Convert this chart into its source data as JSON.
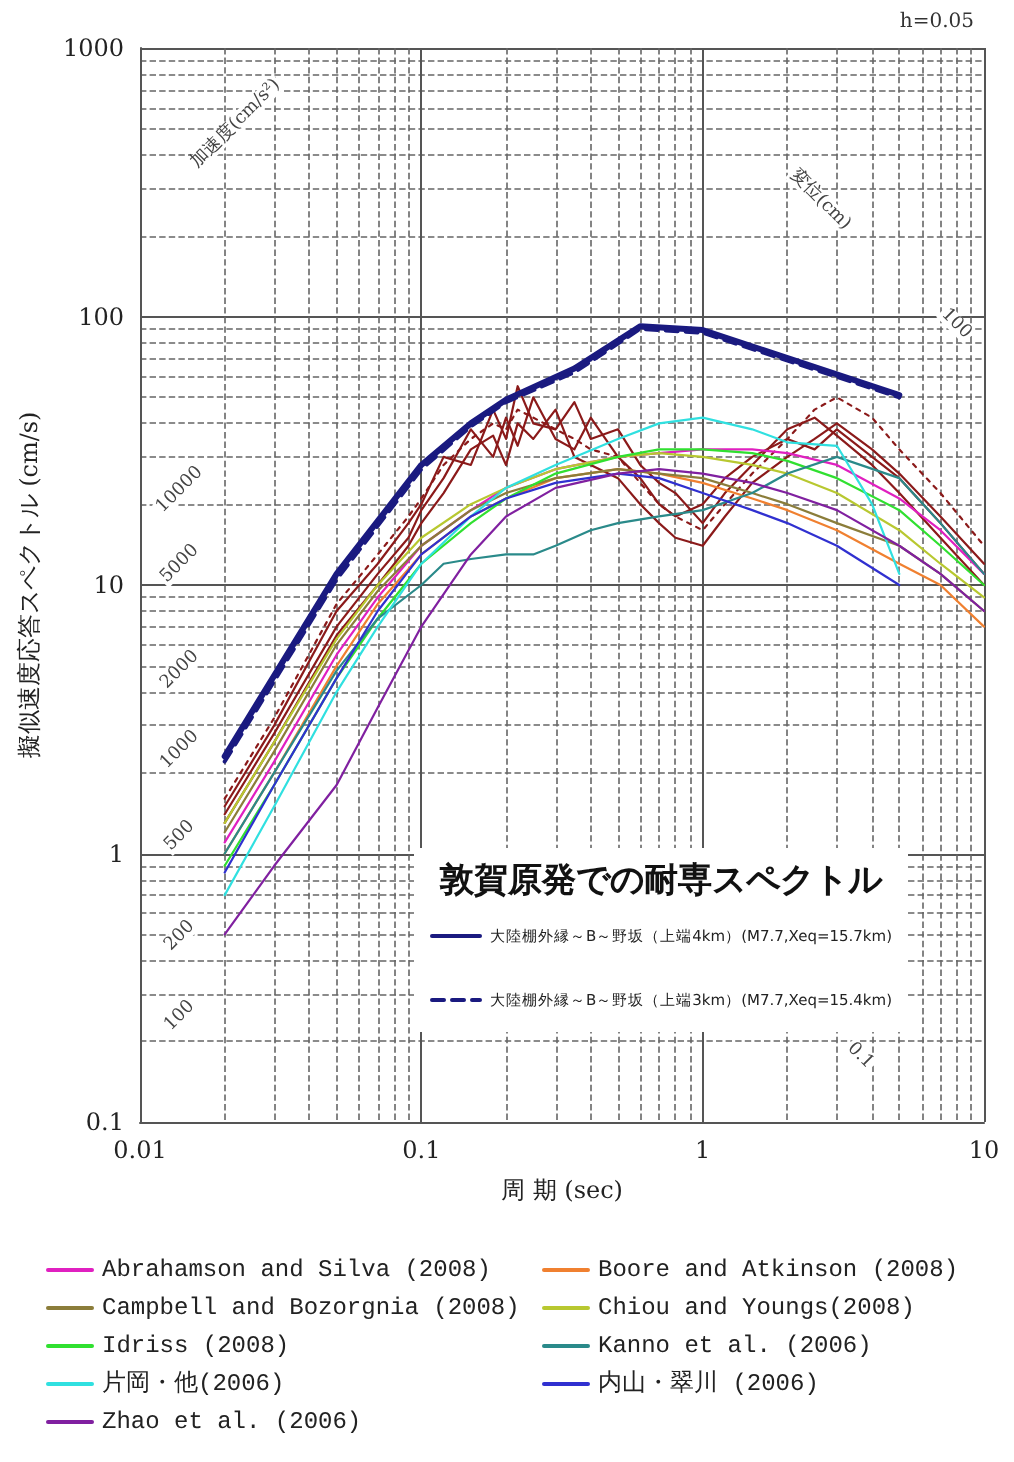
{
  "chart_data": {
    "type": "line",
    "xlabel": "周 期 (sec)",
    "ylabel": "擬似速度応答スペクトル (cm/s)",
    "legend_title": "敦賀原発での耐専スペクトル",
    "log": "xy",
    "grid": true,
    "legend": "bottom",
    "marker": "none",
    "xlim": [
      0.01,
      10
    ],
    "xticks": [
      0.01,
      0.1,
      1,
      10
    ],
    "ylim": [
      0.1,
      1000
    ],
    "yticks": [
      0.1,
      1,
      10,
      100,
      1000
    ],
    "annotations": [
      "h=0.05",
      "加速度(cm/s²)",
      "変位(cm)",
      "10000",
      "5000",
      "2000",
      "1000",
      "500",
      "200",
      "100",
      "100",
      "0.1"
    ],
    "series": [
      {
        "name": "大陸棚外縁～B～野坂（上端4km）(M7.7,Xeq=15.7km)",
        "color": "#1a1a80",
        "x": [
          0.02,
          0.05,
          0.1,
          0.15,
          0.2,
          0.35,
          0.6,
          1,
          5
        ],
        "values": [
          2.3,
          11,
          28,
          40,
          49,
          64,
          92,
          89,
          51
        ]
      },
      {
        "name": "大陸棚外縁～B～野坂（上端3km）(M7.7,Xeq=15.4km)",
        "color": "#1a1a80",
        "line_style": "dashed",
        "x": [
          0.02,
          0.05,
          0.1,
          0.15,
          0.2,
          0.35,
          0.6,
          1,
          5
        ],
        "values": [
          2.2,
          10.5,
          27,
          39,
          48,
          62,
          90,
          87,
          50
        ]
      },
      {
        "color": "#8b1a1a",
        "x": [
          0.02,
          0.03,
          0.05,
          0.07,
          0.09,
          0.1,
          0.12,
          0.15,
          0.18,
          0.2,
          0.22,
          0.25,
          0.3,
          0.35,
          0.4,
          0.5,
          0.6,
          0.7,
          0.8,
          1,
          1.2,
          1.5,
          2,
          2.5,
          3,
          4,
          5,
          7,
          10
        ],
        "values": [
          1.5,
          3,
          8,
          12,
          17,
          20,
          30,
          28,
          45,
          35,
          55,
          40,
          38,
          48,
          35,
          38,
          28,
          24,
          22,
          17,
          22,
          28,
          38,
          42,
          36,
          28,
          22,
          15,
          10
        ]
      },
      {
        "color": "#8b1a1a",
        "x": [
          0.02,
          0.03,
          0.05,
          0.07,
          0.09,
          0.1,
          0.12,
          0.15,
          0.18,
          0.2,
          0.22,
          0.25,
          0.3,
          0.35,
          0.4,
          0.5,
          0.6,
          0.7,
          0.8,
          1,
          1.2,
          1.5,
          2,
          2.5,
          3,
          4,
          5,
          7,
          10
        ],
        "values": [
          1.4,
          2.8,
          7,
          11,
          15,
          19,
          25,
          38,
          30,
          42,
          33,
          50,
          35,
          32,
          42,
          30,
          25,
          20,
          18,
          20,
          25,
          30,
          35,
          32,
          38,
          30,
          25,
          17,
          11
        ]
      },
      {
        "color": "#8b1a1a",
        "x": [
          0.02,
          0.03,
          0.05,
          0.07,
          0.09,
          0.1,
          0.12,
          0.15,
          0.18,
          0.2,
          0.22,
          0.25,
          0.3,
          0.35,
          0.4,
          0.5,
          0.6,
          0.7,
          0.8,
          1,
          1.2,
          1.5,
          2,
          2.5,
          3,
          4,
          5,
          7,
          10
        ],
        "values": [
          1.3,
          2.6,
          6.5,
          10,
          14,
          17,
          22,
          32,
          36,
          28,
          40,
          35,
          45,
          30,
          28,
          25,
          20,
          17,
          15,
          14,
          18,
          24,
          30,
          35,
          40,
          32,
          26,
          18,
          12
        ]
      },
      {
        "color": "#8b1a1a",
        "line_style": "dotted",
        "x": [
          0.02,
          0.03,
          0.05,
          0.07,
          0.09,
          0.1,
          0.12,
          0.15,
          0.18,
          0.2,
          0.22,
          0.25,
          0.3,
          0.35,
          0.4,
          0.5,
          0.6,
          0.7,
          0.8,
          1,
          1.2,
          1.5,
          2,
          2.5,
          3,
          4,
          5,
          7,
          10
        ],
        "values": [
          1.6,
          3.2,
          8.5,
          13,
          18,
          21,
          28,
          35,
          40,
          38,
          45,
          42,
          38,
          35,
          32,
          30,
          24,
          20,
          18,
          16,
          20,
          26,
          35,
          45,
          50,
          42,
          32,
          22,
          14
        ]
      },
      {
        "name": "Abrahamson and Silva (2008)",
        "color": "#e020c0",
        "x": [
          0.02,
          0.03,
          0.05,
          0.07,
          0.1,
          0.15,
          0.2,
          0.3,
          0.5,
          0.7,
          1,
          1.5,
          2,
          3,
          5,
          7,
          10
        ],
        "values": [
          1.1,
          2.2,
          5.5,
          9,
          14,
          19,
          23,
          27,
          30,
          31,
          32,
          32,
          31,
          28,
          21,
          16,
          11
        ]
      },
      {
        "name": "Boore and Atkinson (2008)",
        "color": "#f08030",
        "x": [
          0.02,
          0.03,
          0.05,
          0.07,
          0.1,
          0.15,
          0.2,
          0.3,
          0.5,
          0.7,
          1,
          1.5,
          2,
          3,
          5,
          7,
          10
        ],
        "values": [
          1.0,
          2,
          5,
          8.5,
          13,
          18,
          21,
          25,
          27,
          26,
          24,
          21,
          19,
          16,
          12,
          10,
          7
        ]
      },
      {
        "name": "Campbell and Bozorgnia (2008)",
        "color": "#8b7d3a",
        "x": [
          0.02,
          0.03,
          0.05,
          0.07,
          0.1,
          0.15,
          0.2,
          0.3,
          0.5,
          0.7,
          1,
          1.5,
          2,
          3,
          5,
          7,
          10
        ],
        "values": [
          1.2,
          2.4,
          6,
          9.5,
          14,
          19,
          22,
          25,
          27,
          26,
          25,
          22,
          20,
          17,
          14,
          11,
          8
        ]
      },
      {
        "name": "Chiou and Youngs(2008)",
        "color": "#b8c830",
        "x": [
          0.02,
          0.03,
          0.05,
          0.07,
          0.1,
          0.15,
          0.2,
          0.3,
          0.5,
          0.7,
          1,
          1.5,
          2,
          3,
          5,
          7,
          10
        ],
        "values": [
          1.3,
          2.6,
          6.3,
          10,
          15,
          20,
          23,
          27,
          30,
          31,
          30,
          28,
          26,
          22,
          16,
          12,
          9
        ]
      },
      {
        "name": "Idriss (2008)",
        "color": "#30e030",
        "x": [
          0.02,
          0.03,
          0.05,
          0.07,
          0.1,
          0.15,
          0.2,
          0.3,
          0.5,
          0.7,
          1,
          1.5,
          2,
          3,
          5,
          7,
          10
        ],
        "values": [
          0.9,
          1.8,
          4.5,
          7.5,
          12,
          17,
          21,
          26,
          30,
          32,
          32,
          31,
          29,
          25,
          19,
          14,
          10
        ]
      },
      {
        "name": "Kanno et al. (2006)",
        "color": "#2a8a8a",
        "x": [
          0.02,
          0.03,
          0.05,
          0.07,
          0.1,
          0.12,
          0.15,
          0.2,
          0.25,
          0.3,
          0.4,
          0.5,
          0.7,
          1,
          1.5,
          2,
          3,
          5,
          7,
          10
        ],
        "values": [
          1.0,
          2.0,
          4.8,
          7.5,
          10,
          12,
          12.5,
          13,
          13,
          14,
          16,
          17,
          18,
          19,
          22,
          26,
          30,
          25,
          17,
          11
        ]
      },
      {
        "name": "片岡・他(2006)",
        "color": "#30e0e0",
        "x": [
          0.02,
          0.03,
          0.05,
          0.07,
          0.1,
          0.15,
          0.2,
          0.3,
          0.5,
          0.7,
          1,
          1.5,
          2,
          3,
          4,
          5
        ],
        "values": [
          0.7,
          1.5,
          4,
          7,
          12,
          18,
          23,
          28,
          35,
          40,
          42,
          38,
          34,
          33,
          20,
          11
        ]
      },
      {
        "name": "内山・翠川 (2006)",
        "color": "#3030d0",
        "x": [
          0.02,
          0.03,
          0.05,
          0.07,
          0.1,
          0.15,
          0.2,
          0.3,
          0.5,
          0.7,
          1,
          1.5,
          2,
          3,
          5
        ],
        "values": [
          0.85,
          1.8,
          4.5,
          8,
          13,
          18,
          21,
          24,
          26,
          25,
          22,
          19,
          17,
          14,
          10
        ]
      },
      {
        "name": "Zhao et al. (2006)",
        "color": "#8020a0",
        "x": [
          0.02,
          0.03,
          0.05,
          0.07,
          0.1,
          0.15,
          0.2,
          0.3,
          0.5,
          0.7,
          1,
          1.5,
          2,
          3,
          5,
          7,
          10
        ],
        "values": [
          0.5,
          0.9,
          1.8,
          3.5,
          7,
          13,
          18,
          23,
          26,
          27,
          26,
          24,
          22,
          19,
          14,
          11,
          8
        ]
      }
    ]
  }
}
